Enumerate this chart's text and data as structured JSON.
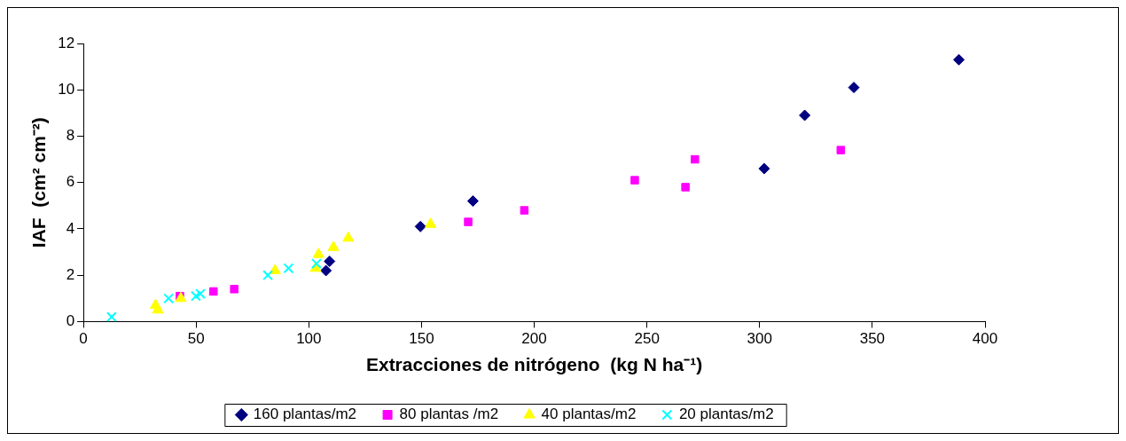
{
  "chart_data": {
    "type": "scatter",
    "xlabel": "Extracciones de nitrógeno  (kg N ha⁻¹)",
    "ylabel": "IAF  (cm² cm⁻²)",
    "xlim": [
      0,
      400
    ],
    "xticks": [
      0,
      50,
      100,
      150,
      200,
      250,
      300,
      350,
      400
    ],
    "ylim": [
      0,
      12
    ],
    "yticks": [
      0,
      2,
      4,
      6,
      8,
      10,
      12
    ],
    "grid": false,
    "legend": "bottom",
    "series": [
      {
        "name": "160 plantas/m2",
        "color": "#000080",
        "marker": "diamond",
        "x": [
          107.6,
          109.2,
          149.5,
          172.8,
          302,
          320,
          341.8,
          388.4
        ],
        "values": [
          2.2,
          2.6,
          4.1,
          5.2,
          6.6,
          8.9,
          10.1,
          11.3
        ]
      },
      {
        "name": "80 plantas /m2",
        "color": "#ff00ff",
        "marker": "square",
        "x": [
          42.8,
          57.7,
          66.9,
          170.7,
          195.6,
          244.6,
          267.1,
          271.3,
          336
        ],
        "values": [
          1.1,
          1.3,
          1.4,
          4.3,
          4.8,
          6.1,
          5.8,
          7.0,
          7.4
        ]
      },
      {
        "name": "40 plantas/m2",
        "color": "#ffff00",
        "marker": "triangle",
        "x": [
          32,
          33,
          43.2,
          85,
          103,
          104.3,
          110.9,
          117.5,
          154
        ],
        "values": [
          0.7,
          0.5,
          1.0,
          2.2,
          2.3,
          2.9,
          3.2,
          3.6,
          4.2
        ]
      },
      {
        "name": "20 plantas/m2",
        "color": "#00ffff",
        "marker": "cross",
        "x": [
          12.5,
          37.8,
          49.9,
          51.9,
          81.8,
          91,
          103.4
        ],
        "values": [
          0.2,
          1.0,
          1.1,
          1.2,
          2.0,
          2.3,
          2.5
        ]
      }
    ]
  }
}
